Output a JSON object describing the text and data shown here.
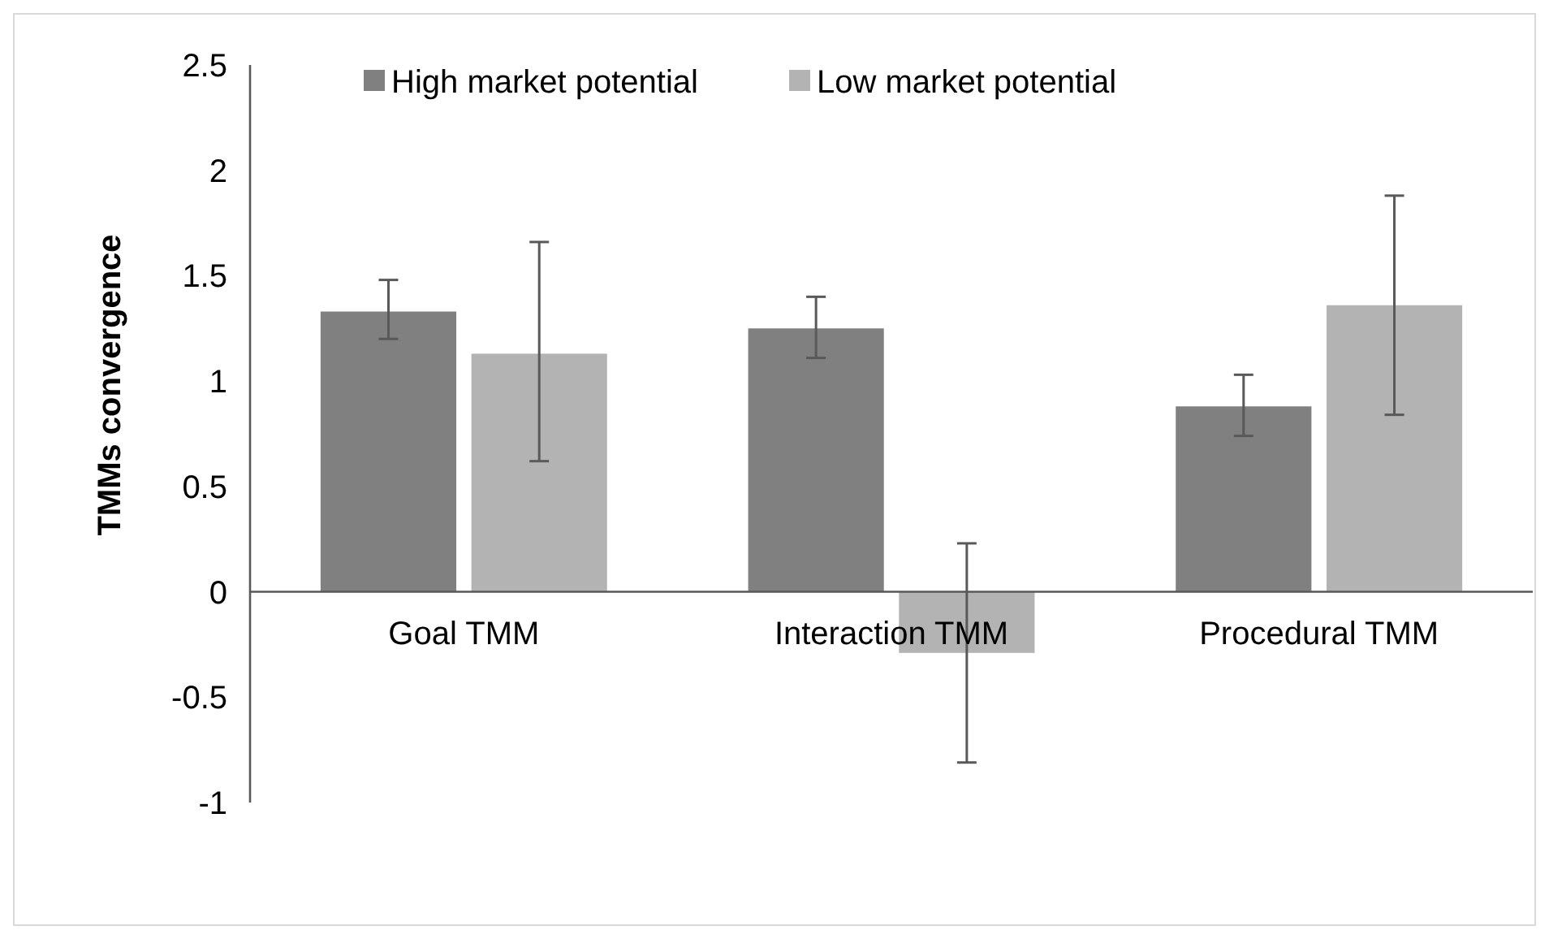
{
  "chart_data": {
    "type": "bar",
    "ylabel": "TMMs convergence",
    "categories": [
      "Goal TMM",
      "Interaction TMM",
      "Procedural TMM"
    ],
    "series": [
      {
        "name": "High market potential",
        "color": "#808080",
        "values": [
          1.33,
          1.25,
          0.88
        ],
        "errors": [
          [
            1.2,
            1.48
          ],
          [
            1.11,
            1.4
          ],
          [
            0.74,
            1.03
          ]
        ]
      },
      {
        "name": "Low market potential",
        "color": "#b3b3b3",
        "values": [
          1.13,
          -0.29,
          1.36
        ],
        "errors": [
          [
            0.62,
            1.66
          ],
          [
            -0.81,
            0.23
          ],
          [
            0.84,
            1.88
          ]
        ]
      }
    ],
    "ylim": [
      -1,
      2.5
    ],
    "yticks": [
      -1,
      -0.5,
      0,
      0.5,
      1,
      1.5,
      2,
      2.5
    ],
    "grid": false,
    "legend": "top"
  }
}
